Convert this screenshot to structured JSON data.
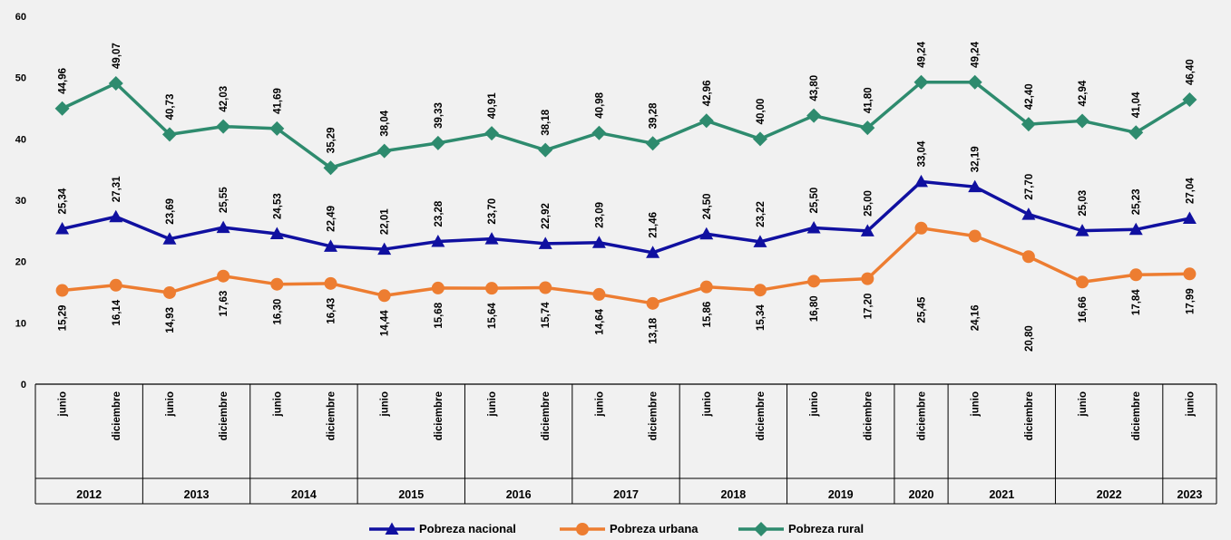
{
  "chart_data": {
    "type": "line",
    "title": "",
    "xlabel": "",
    "ylabel": "",
    "ylim": [
      0,
      60
    ],
    "yticks": [
      0,
      10,
      20,
      30,
      40,
      50,
      60
    ],
    "grid": false,
    "legend_position": "bottom",
    "x_months": [
      "junio",
      "diciembre",
      "junio",
      "diciembre",
      "junio",
      "diciembre",
      "junio",
      "diciembre",
      "junio",
      "diciembre",
      "junio",
      "diciembre",
      "junio",
      "diciembre",
      "junio",
      "diciembre",
      "diciembre",
      "junio",
      "diciembre",
      "junio",
      "diciembre",
      "junio"
    ],
    "x_years": [
      {
        "label": "2012",
        "span": 2
      },
      {
        "label": "2013",
        "span": 2
      },
      {
        "label": "2014",
        "span": 2
      },
      {
        "label": "2015",
        "span": 2
      },
      {
        "label": "2016",
        "span": 2
      },
      {
        "label": "2017",
        "span": 2
      },
      {
        "label": "2018",
        "span": 2
      },
      {
        "label": "2019",
        "span": 2
      },
      {
        "label": "2020",
        "span": 1
      },
      {
        "label": "2021",
        "span": 2
      },
      {
        "label": "2022",
        "span": 2
      },
      {
        "label": "2023",
        "span": 1
      }
    ],
    "series": [
      {
        "name": "Pobreza nacional",
        "color": "#1010a0",
        "marker": "triangle",
        "values": [
          25.34,
          27.31,
          23.69,
          25.55,
          24.53,
          22.49,
          22.01,
          23.28,
          23.7,
          22.92,
          23.09,
          21.46,
          24.5,
          23.22,
          25.5,
          25.0,
          33.04,
          32.19,
          27.7,
          25.03,
          25.23,
          27.04
        ],
        "labels": [
          "25,34",
          "27,31",
          "23,69",
          "25,55",
          "24,53",
          "22,49",
          "22,01",
          "23,28",
          "23,70",
          "22,92",
          "23,09",
          "21,46",
          "24,50",
          "23,22",
          "25,50",
          "25,00",
          "33,04",
          "32,19",
          "27,70",
          "25,03",
          "25,23",
          "27,04"
        ]
      },
      {
        "name": "Pobreza urbana",
        "color": "#ed7d31",
        "marker": "circle",
        "values": [
          15.29,
          16.14,
          14.93,
          17.63,
          16.3,
          16.43,
          14.44,
          15.68,
          15.64,
          15.74,
          14.64,
          13.18,
          15.86,
          15.34,
          16.8,
          17.2,
          25.45,
          24.16,
          20.8,
          16.66,
          17.84,
          17.99
        ],
        "labels": [
          "15,29",
          "16,14",
          "14,93",
          "17,63",
          "16,30",
          "16,43",
          "14,44",
          "15,68",
          "15,64",
          "15,74",
          "14,64",
          "13,18",
          "15,86",
          "15,34",
          "16,80",
          "17,20",
          "25,45",
          "24,16",
          "20,80",
          "16,66",
          "17,84",
          "17,99"
        ]
      },
      {
        "name": "Pobreza rural",
        "color": "#2e8b6e",
        "marker": "diamond",
        "values": [
          44.96,
          49.07,
          40.73,
          42.03,
          41.69,
          35.29,
          38.04,
          39.33,
          40.91,
          38.18,
          40.98,
          39.28,
          42.96,
          40.0,
          43.8,
          41.8,
          49.24,
          49.24,
          42.4,
          42.94,
          41.04,
          46.4
        ],
        "labels": [
          "44,96",
          "49,07",
          "40,73",
          "42,03",
          "41,69",
          "35,29",
          "38,04",
          "39,33",
          "40,91",
          "38,18",
          "40,98",
          "39,28",
          "42,96",
          "40,00",
          "43,80",
          "41,80",
          "49,24",
          "49,24",
          "42,40",
          "42,94",
          "41,04",
          "46,40"
        ]
      }
    ]
  }
}
